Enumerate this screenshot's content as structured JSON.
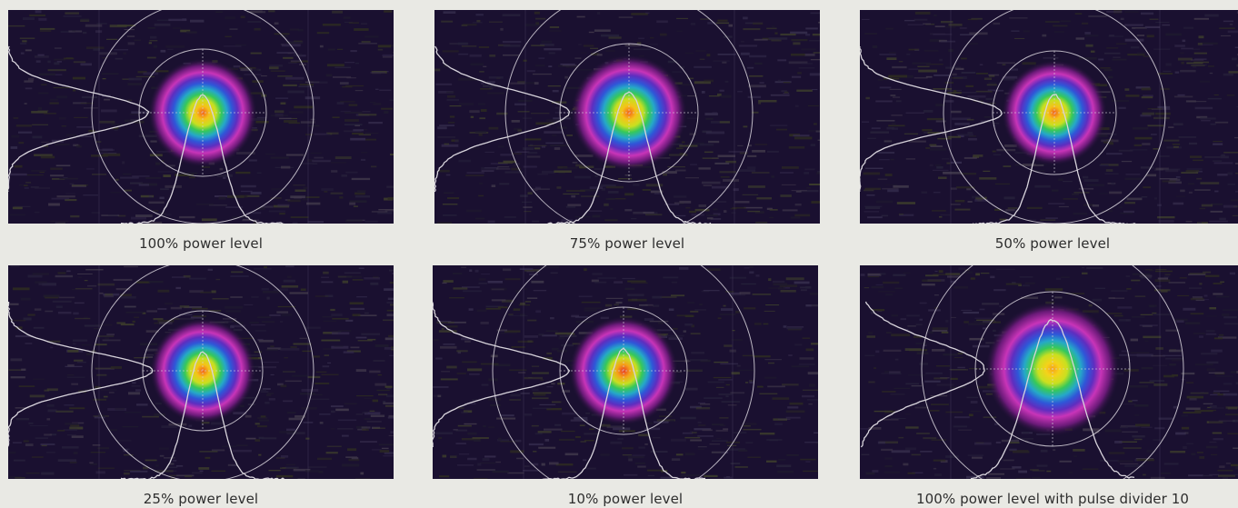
{
  "colors": {
    "page_background": "#e9e9e4",
    "image_background": "#1a1030",
    "overlay_lines": "#d8d4dc"
  },
  "panels": [
    {
      "caption": "100% power level"
    },
    {
      "caption": "75% power level"
    },
    {
      "caption": "50% power level"
    },
    {
      "caption": "25% power level"
    },
    {
      "caption": "10% power level"
    },
    {
      "caption": "100% power level with pulse divider 10"
    }
  ]
}
